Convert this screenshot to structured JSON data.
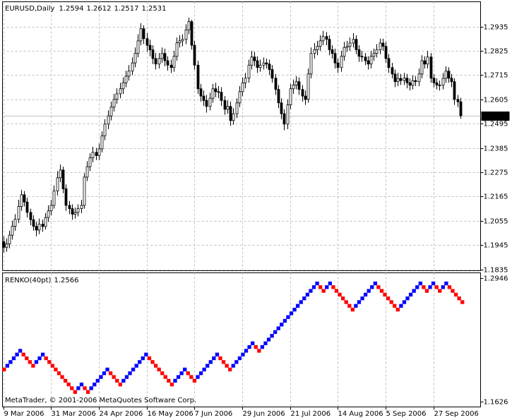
{
  "chart_data": [
    {
      "type": "candlestick",
      "title": "EURUSD,Daily",
      "xlim": [
        -0.25,
        159.75
      ],
      "xticks": [
        {
          "value": 0,
          "label": "9 Mar 2006"
        },
        {
          "value": 16,
          "label": "31 Mar 2006"
        },
        {
          "value": 32,
          "label": "24 Apr 2006"
        },
        {
          "value": 48,
          "label": "16 May 2006"
        },
        {
          "value": 64,
          "label": "7 Jun 2006"
        },
        {
          "value": 80,
          "label": "29 Jun 2006"
        },
        {
          "value": 96,
          "label": "21 Jul 2006"
        },
        {
          "value": 112,
          "label": "14 Aug 2006"
        },
        {
          "value": 128,
          "label": "5 Sep 2006"
        },
        {
          "value": 144,
          "label": "27 Sep 2006"
        }
      ],
      "ylim": [
        1.1829,
        1.3047
      ],
      "yticks": [
        1.2935,
        1.2825,
        1.2715,
        1.2605,
        1.2495,
        1.2385,
        1.2275,
        1.2165,
        1.2055,
        1.1945,
        1.1835
      ],
      "grid": true,
      "grid_color": "#c0c0c0",
      "up_color": "#ffffff",
      "down_color": "#000000",
      "wick_color": "#000000",
      "price_line_color": "#c0c0c0",
      "open": [
        1.196,
        1.1935,
        1.195,
        1.199,
        1.203,
        1.2062,
        1.212,
        1.2173,
        1.214,
        1.2093,
        1.206,
        1.203,
        1.2013,
        1.204,
        1.2029,
        1.207,
        1.21,
        1.2125,
        1.219,
        1.225,
        1.2285,
        1.22,
        1.2125,
        1.211,
        1.2085,
        1.2093,
        1.211,
        1.2125,
        1.2253,
        1.23,
        1.234,
        1.2365,
        1.235,
        1.2381,
        1.244,
        1.2493,
        1.253,
        1.257,
        1.2605,
        1.263,
        1.2653,
        1.268,
        1.271,
        1.2733,
        1.277,
        1.2813,
        1.287,
        1.2925,
        1.288,
        1.285,
        1.2829,
        1.279,
        1.2765,
        1.279,
        1.2813,
        1.278,
        1.276,
        1.2749,
        1.28,
        1.2861,
        1.287,
        1.2877,
        1.292,
        1.2957,
        1.285,
        1.276,
        1.2653,
        1.262,
        1.26,
        1.2573,
        1.261,
        1.2653,
        1.264,
        1.2637,
        1.26,
        1.256,
        1.2573,
        1.2509,
        1.254,
        1.2589,
        1.264,
        1.268,
        1.2701,
        1.276,
        1.2797,
        1.278,
        1.2749,
        1.276,
        1.277,
        1.2765,
        1.274,
        1.2701,
        1.265,
        1.2589,
        1.254,
        1.2493,
        1.258,
        1.2653,
        1.267,
        1.2685,
        1.265,
        1.262,
        1.2605,
        1.272,
        1.2813,
        1.283,
        1.2845,
        1.287,
        1.289,
        1.2877,
        1.283,
        1.2813,
        1.277,
        1.2749,
        1.28,
        1.284,
        1.2845,
        1.286,
        1.2877,
        1.283,
        1.28,
        1.2797,
        1.278,
        1.2765,
        1.28,
        1.2813,
        1.283,
        1.286,
        1.2845,
        1.279,
        1.2749,
        1.272,
        1.2685,
        1.27,
        1.269,
        1.2701,
        1.268,
        1.2669,
        1.269,
        1.2685,
        1.272,
        1.278,
        1.2765,
        1.2797,
        1.2701,
        1.268,
        1.267,
        1.2669,
        1.27,
        1.2733,
        1.2701,
        1.2685,
        1.2605,
        1.2594
      ],
      "high": [
        1.1985,
        1.1975,
        1.201,
        1.2055,
        1.2085,
        1.215,
        1.2195,
        1.219,
        1.216,
        1.211,
        1.208,
        1.205,
        1.2065,
        1.206,
        1.209,
        1.2125,
        1.215,
        1.2215,
        1.228,
        1.231,
        1.23,
        1.222,
        1.2145,
        1.213,
        1.2115,
        1.213,
        1.215,
        1.227,
        1.2325,
        1.236,
        1.239,
        1.2385,
        1.2405,
        1.246,
        1.2515,
        1.2555,
        1.2595,
        1.263,
        1.2655,
        1.268,
        1.2705,
        1.2735,
        1.276,
        1.2795,
        1.284,
        1.29,
        1.295,
        1.294,
        1.2905,
        1.2875,
        1.285,
        1.2815,
        1.2815,
        1.284,
        1.2835,
        1.28,
        1.2785,
        1.2825,
        1.2885,
        1.2895,
        1.29,
        1.2945,
        1.2975,
        1.2965,
        1.287,
        1.278,
        1.2675,
        1.2645,
        1.2625,
        1.2635,
        1.2675,
        1.268,
        1.2665,
        1.266,
        1.262,
        1.26,
        1.2595,
        1.2565,
        1.261,
        1.2665,
        1.2705,
        1.2725,
        1.2785,
        1.2825,
        1.282,
        1.28,
        1.2785,
        1.2795,
        1.279,
        1.2785,
        1.276,
        1.272,
        1.267,
        1.261,
        1.256,
        1.2605,
        1.2675,
        1.2695,
        1.271,
        1.2705,
        1.267,
        1.2645,
        1.2745,
        1.284,
        1.286,
        1.287,
        1.2895,
        1.2915,
        1.291,
        1.2895,
        1.285,
        1.2835,
        1.279,
        1.2825,
        1.2865,
        1.287,
        1.2885,
        1.2905,
        1.2895,
        1.285,
        1.2825,
        1.2815,
        1.28,
        1.2825,
        1.2835,
        1.2855,
        1.288,
        1.288,
        1.2865,
        1.281,
        1.277,
        1.274,
        1.2725,
        1.272,
        1.2725,
        1.272,
        1.27,
        1.2715,
        1.271,
        1.2745,
        1.2805,
        1.28,
        1.2825,
        1.2815,
        1.272,
        1.27,
        1.269,
        1.2725,
        1.2755,
        1.275,
        1.272,
        1.27,
        1.2625,
        1.2612
      ],
      "low": [
        1.191,
        1.1915,
        1.193,
        1.197,
        1.201,
        1.2045,
        1.21,
        1.212,
        1.207,
        1.2035,
        1.201,
        1.1985,
        1.1995,
        1.2005,
        1.2015,
        1.205,
        1.208,
        1.211,
        1.217,
        1.223,
        1.218,
        1.21,
        1.2085,
        1.206,
        1.2065,
        1.2075,
        1.209,
        1.211,
        1.2235,
        1.228,
        1.232,
        1.233,
        1.233,
        1.2365,
        1.242,
        1.247,
        1.251,
        1.255,
        1.2585,
        1.261,
        1.263,
        1.266,
        1.269,
        1.2715,
        1.275,
        1.2795,
        1.285,
        1.2855,
        1.282,
        1.28,
        1.2765,
        1.274,
        1.2745,
        1.277,
        1.2755,
        1.2735,
        1.2725,
        1.273,
        1.278,
        1.284,
        1.2845,
        1.2855,
        1.29,
        1.283,
        1.274,
        1.263,
        1.2595,
        1.2575,
        1.2545,
        1.2555,
        1.259,
        1.2615,
        1.261,
        1.2575,
        1.2535,
        1.254,
        1.2485,
        1.249,
        1.252,
        1.257,
        1.262,
        1.2655,
        1.268,
        1.274,
        1.2755,
        1.2725,
        1.273,
        1.274,
        1.2745,
        1.2715,
        1.268,
        1.2625,
        1.2565,
        1.2515,
        1.2465,
        1.247,
        1.256,
        1.263,
        1.265,
        1.2625,
        1.2595,
        1.258,
        1.259,
        1.27,
        1.279,
        1.2805,
        1.2825,
        1.285,
        1.285,
        1.2805,
        1.279,
        1.2745,
        1.2725,
        1.273,
        1.278,
        1.282,
        1.2825,
        1.284,
        1.281,
        1.2775,
        1.2775,
        1.276,
        1.274,
        1.2745,
        1.278,
        1.2795,
        1.281,
        1.2825,
        1.277,
        1.2725,
        1.27,
        1.266,
        1.2665,
        1.267,
        1.267,
        1.2655,
        1.2645,
        1.265,
        1.2665,
        1.2665,
        1.27,
        1.2745,
        1.2745,
        1.268,
        1.266,
        1.265,
        1.2645,
        1.265,
        1.268,
        1.268,
        1.266,
        1.258,
        1.257,
        1.2517
      ],
      "close": [
        1.1935,
        1.195,
        1.199,
        1.203,
        1.2062,
        1.212,
        1.2173,
        1.214,
        1.2093,
        1.206,
        1.203,
        1.2013,
        1.204,
        1.2029,
        1.207,
        1.21,
        1.2125,
        1.219,
        1.225,
        1.2285,
        1.22,
        1.2125,
        1.211,
        1.2085,
        1.2093,
        1.211,
        1.2125,
        1.2253,
        1.23,
        1.234,
        1.2365,
        1.235,
        1.2381,
        1.244,
        1.2493,
        1.253,
        1.257,
        1.2605,
        1.263,
        1.2653,
        1.268,
        1.271,
        1.2733,
        1.277,
        1.2813,
        1.287,
        1.2925,
        1.288,
        1.285,
        1.2829,
        1.279,
        1.2765,
        1.279,
        1.2813,
        1.278,
        1.276,
        1.2749,
        1.28,
        1.2861,
        1.287,
        1.2877,
        1.292,
        1.2957,
        1.285,
        1.276,
        1.2653,
        1.262,
        1.26,
        1.2573,
        1.261,
        1.2653,
        1.264,
        1.2637,
        1.26,
        1.256,
        1.2573,
        1.2509,
        1.254,
        1.2589,
        1.264,
        1.268,
        1.2701,
        1.276,
        1.2797,
        1.278,
        1.2749,
        1.276,
        1.277,
        1.2765,
        1.274,
        1.2701,
        1.265,
        1.2589,
        1.254,
        1.2493,
        1.258,
        1.2653,
        1.267,
        1.2685,
        1.265,
        1.262,
        1.2605,
        1.272,
        1.2813,
        1.283,
        1.2845,
        1.287,
        1.289,
        1.2877,
        1.283,
        1.2813,
        1.277,
        1.2749,
        1.28,
        1.284,
        1.2845,
        1.286,
        1.2877,
        1.283,
        1.28,
        1.2797,
        1.278,
        1.2765,
        1.28,
        1.2813,
        1.283,
        1.286,
        1.2845,
        1.279,
        1.2749,
        1.272,
        1.2685,
        1.27,
        1.269,
        1.2701,
        1.268,
        1.2669,
        1.269,
        1.2685,
        1.272,
        1.278,
        1.2765,
        1.2797,
        1.2701,
        1.268,
        1.267,
        1.2669,
        1.27,
        1.2733,
        1.2701,
        1.2685,
        1.2605,
        1.2594,
        1.2531
      ]
    },
    {
      "type": "renko",
      "title": "RENKO(40pt)",
      "indicator_value": 1.2566,
      "ylim": [
        1.1566,
        1.2999
      ],
      "yticks": [
        1.2946,
        1.1626
      ],
      "box_size": 0.004,
      "up_color": "#0000ff",
      "down_color": "#ff0000",
      "values": [
        1.1966,
        1.2006,
        1.2046,
        1.2086,
        1.2126,
        1.2166,
        1.2126,
        1.2086,
        1.2046,
        1.2006,
        1.2046,
        1.2086,
        1.2126,
        1.2086,
        1.2046,
        1.2006,
        1.1966,
        1.1926,
        1.1886,
        1.1846,
        1.1806,
        1.1766,
        1.1726,
        1.1766,
        1.1806,
        1.1766,
        1.1726,
        1.1766,
        1.1806,
        1.1846,
        1.1886,
        1.1926,
        1.1966,
        1.1926,
        1.1886,
        1.1846,
        1.1806,
        1.1846,
        1.1886,
        1.1926,
        1.1966,
        1.2006,
        1.2046,
        1.2086,
        1.2126,
        1.2086,
        1.2046,
        1.2006,
        1.1966,
        1.1926,
        1.1886,
        1.1846,
        1.1806,
        1.1846,
        1.1886,
        1.1926,
        1.1966,
        1.1926,
        1.1886,
        1.1846,
        1.1886,
        1.1926,
        1.1966,
        1.2006,
        1.2046,
        1.2086,
        1.2126,
        1.2086,
        1.2046,
        1.2006,
        1.1966,
        1.2006,
        1.2046,
        1.2086,
        1.2126,
        1.2166,
        1.2206,
        1.2246,
        1.2206,
        1.2166,
        1.2206,
        1.2246,
        1.2286,
        1.2326,
        1.2366,
        1.2406,
        1.2446,
        1.2486,
        1.2526,
        1.2566,
        1.2606,
        1.2646,
        1.2686,
        1.2726,
        1.2766,
        1.2806,
        1.2846,
        1.2886,
        1.2846,
        1.2806,
        1.2846,
        1.2886,
        1.2846,
        1.2806,
        1.2766,
        1.2726,
        1.2686,
        1.2646,
        1.2606,
        1.2646,
        1.2686,
        1.2726,
        1.2766,
        1.2806,
        1.2846,
        1.2886,
        1.2846,
        1.2806,
        1.2766,
        1.2726,
        1.2686,
        1.2646,
        1.2606,
        1.2646,
        1.2686,
        1.2726,
        1.2766,
        1.2806,
        1.2846,
        1.2886,
        1.2846,
        1.2806,
        1.2846,
        1.2886,
        1.2846,
        1.2806,
        1.2846,
        1.2886,
        1.2846,
        1.2806,
        1.2766,
        1.2726,
        1.2686
      ]
    }
  ],
  "copyright": "MetaTrader, © 2001-2006 MetaQuotes Software Corp."
}
